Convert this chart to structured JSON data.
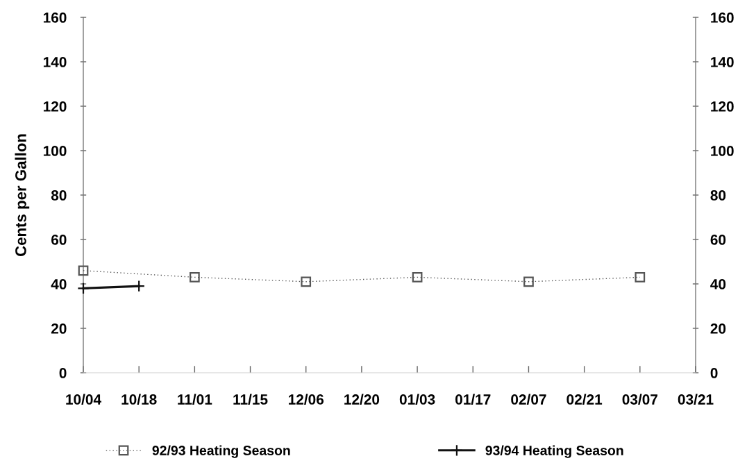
{
  "chart_data": {
    "type": "line",
    "ylabel": "Cents per Gallon",
    "categories": [
      "10/04",
      "10/18",
      "11/01",
      "11/15",
      "12/06",
      "12/20",
      "01/03",
      "01/17",
      "02/07",
      "02/21",
      "03/07",
      "03/21"
    ],
    "series": [
      {
        "name": "92/93 Heating Season",
        "color": "#555555",
        "marker": "square",
        "line_style": "dotted",
        "values": [
          46,
          null,
          43,
          null,
          41,
          null,
          43,
          null,
          41,
          null,
          43,
          null
        ]
      },
      {
        "name": "93/94 Heating Season",
        "color": "#111111",
        "marker": "cross",
        "line_style": "solid",
        "values": [
          38,
          39,
          null,
          null,
          null,
          null,
          null,
          null,
          null,
          null,
          null,
          null
        ]
      }
    ],
    "ylim": [
      0,
      160
    ],
    "yticks": [
      0,
      20,
      40,
      60,
      80,
      100,
      120,
      140,
      160
    ],
    "y2lim": [
      0,
      160
    ],
    "y2ticks": [
      0,
      20,
      40,
      60,
      80,
      100,
      120,
      140,
      160
    ],
    "legend": "bottom"
  }
}
